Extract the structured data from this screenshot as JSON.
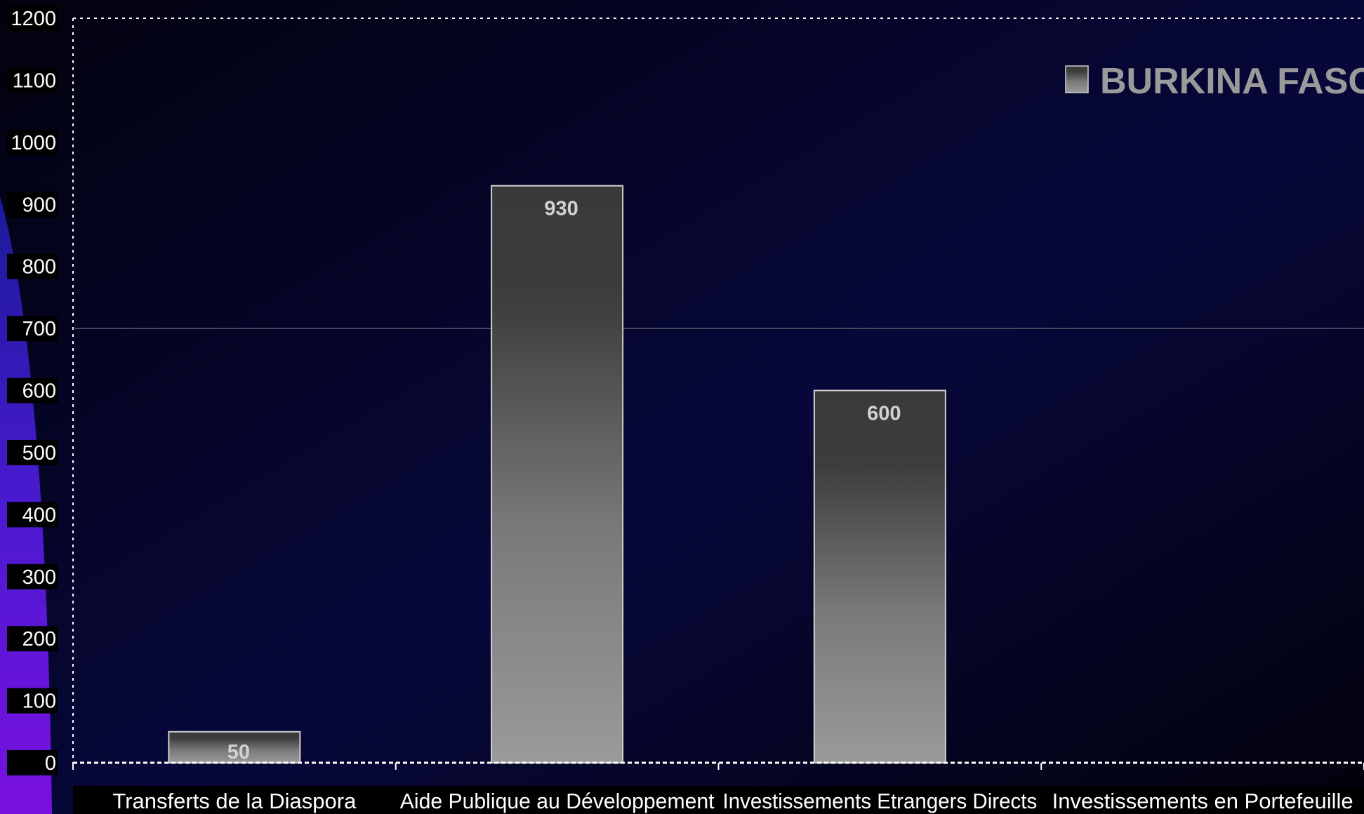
{
  "chart_data": {
    "type": "bar",
    "categories": [
      "Transferts de la Diaspora",
      "Aide Publique au Développement",
      "Investissements Etrangers Directs",
      "Investissements en Portefeuille"
    ],
    "series": [
      {
        "name": "BURKINA FASO",
        "values": [
          50,
          930,
          600,
          0
        ]
      }
    ],
    "data_labels": [
      "50",
      "930",
      "600",
      ""
    ],
    "y_ticks": [
      "0",
      "100",
      "200",
      "300",
      "400",
      "500",
      "600",
      "700",
      "800",
      "900",
      "1000",
      "1100",
      "1200"
    ],
    "ylim": [
      0,
      1200
    ],
    "grid": "horizontal line at 700",
    "legend_position": "top-right",
    "title": "",
    "xlabel": "",
    "ylabel": "",
    "colors": {
      "background": "#050522",
      "bar_top": "#3a3a3a",
      "bar_bottom": "#9a9a9a",
      "bar_border": "#d0d0d0",
      "text": "#ffffff",
      "legend_text": "#9a9a9a",
      "accent_left": "#6a10d8"
    }
  }
}
